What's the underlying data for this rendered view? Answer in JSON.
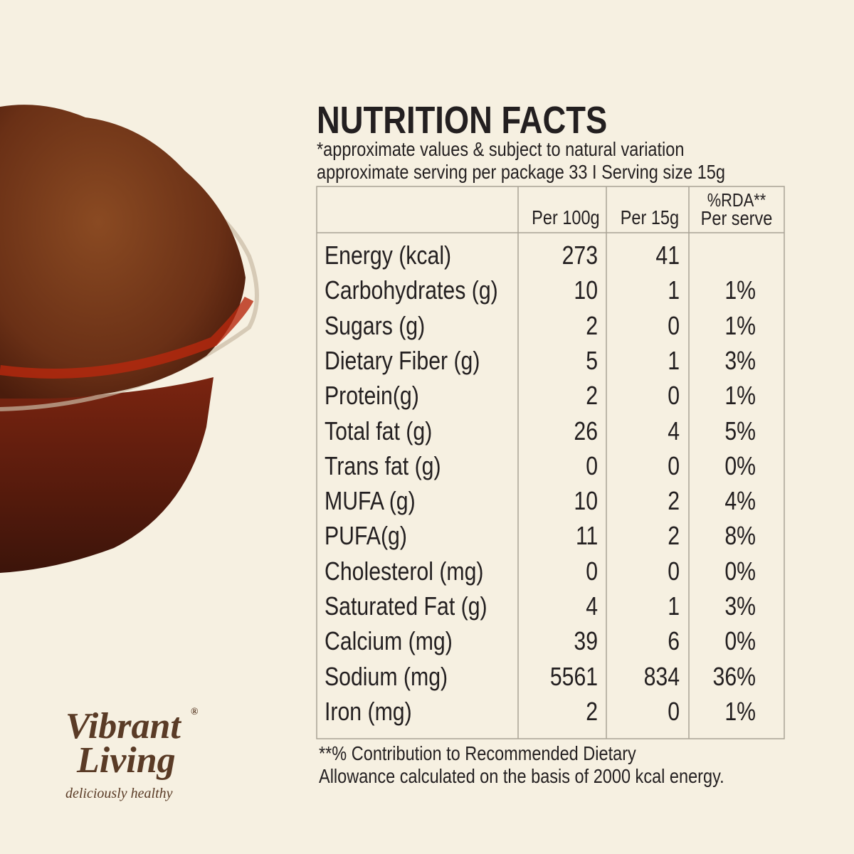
{
  "brand": {
    "name_line1": "Vibrant",
    "name_line2": "Living",
    "registered": "®",
    "tagline": "deliciously healthy"
  },
  "header": {
    "title": "NUTRITION FACTS",
    "note": "*approximate values & subject to natural variation",
    "serving": "approximate serving per package 33 I Serving size 15g"
  },
  "table": {
    "columns": {
      "per_100g": "Per 100g",
      "per_15g": "Per 15g",
      "rda_line1": "%RDA**",
      "rda_line2": "Per serve"
    },
    "rows": [
      [
        "Energy (kcal)",
        "273",
        "41"
      ],
      [
        "Carbohydrates (g)",
        "10",
        "1",
        "1%"
      ],
      [
        "Sugars (g)",
        "2",
        "0",
        "1%"
      ],
      [
        "Dietary Fiber (g)",
        "5",
        "1",
        "3%"
      ],
      [
        "Protein(g)",
        "2",
        "0",
        "1%"
      ],
      [
        "Total fat (g)",
        "26",
        "4",
        "5%"
      ],
      [
        "Trans fat (g)",
        "0",
        "0",
        "0%"
      ],
      [
        "MUFA (g)",
        "10",
        "2",
        "4%"
      ],
      [
        "PUFA(g)",
        "11",
        "2",
        "8%"
      ],
      [
        "Cholesterol (mg)",
        "0",
        "0",
        "0%"
      ],
      [
        "Saturated Fat (g)",
        "4",
        "1",
        "3%"
      ],
      [
        "Calcium (mg)",
        "39",
        "6",
        "0%"
      ],
      [
        "Sodium (mg)",
        "5561",
        "834",
        "36%"
      ],
      [
        "Iron (mg)",
        "2",
        "0",
        "1%"
      ]
    ]
  },
  "footnote": {
    "line1": "**% Contribution to Recommended Dietary",
    "line2": "Allowance calculated on the basis of 2000 kcal energy."
  }
}
